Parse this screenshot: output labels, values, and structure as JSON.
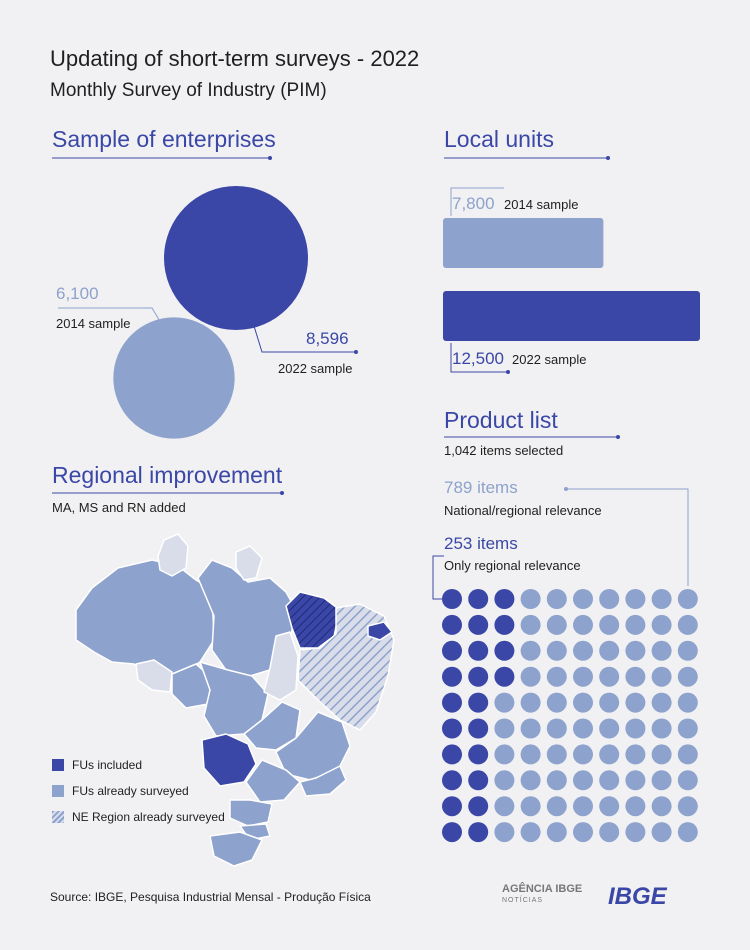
{
  "header": {
    "title": "Updating of short-term surveys - 2022",
    "subtitle": "Monthly Survey of Industry (PIM)"
  },
  "colors": {
    "dark": "#3a47a6",
    "light": "#8da2cc",
    "pale": "#d9dde9"
  },
  "chart_data": [
    {
      "type": "bubble",
      "title": "Sample of enterprises",
      "series": [
        {
          "name": "2014 sample",
          "value": 6100,
          "label": "6,100"
        },
        {
          "name": "2022 sample",
          "value": 8596,
          "label": "8,596"
        }
      ]
    },
    {
      "type": "bar",
      "orientation": "horizontal",
      "title": "Local units",
      "series": [
        {
          "name": "2014 sample",
          "value": 7800,
          "label": "7,800"
        },
        {
          "name": "2022 sample",
          "value": 12500,
          "label": "12,500"
        }
      ]
    },
    {
      "type": "waffle",
      "title": "Product list",
      "subtitle": "1,042 items selected",
      "grid": {
        "rows": 10,
        "cols": 10
      },
      "series": [
        {
          "name": "National/regional relevance",
          "label": "789 items",
          "dots": 76
        },
        {
          "name": "Only regional relevance",
          "label": "253 items",
          "dots": 24
        }
      ],
      "dark_columns_per_row": [
        3,
        3,
        3,
        3,
        2,
        2,
        2,
        2,
        2,
        2
      ]
    }
  ],
  "regional": {
    "title": "Regional improvement",
    "note": "MA, MS and RN added",
    "legend": [
      {
        "label": "FUs included",
        "style": "dark"
      },
      {
        "label": "FUs already surveyed",
        "style": "light"
      },
      {
        "label": "NE Region already surveyed",
        "style": "hatch"
      }
    ]
  },
  "footer": {
    "source": "Source: IBGE, Pesquisa Industrial Mensal - Produção Física",
    "logo_agencia": "AGÊNCIA IBGE",
    "logo_agencia_sub": "NOTÍCIAS",
    "logo_ibge": "IBGE"
  }
}
